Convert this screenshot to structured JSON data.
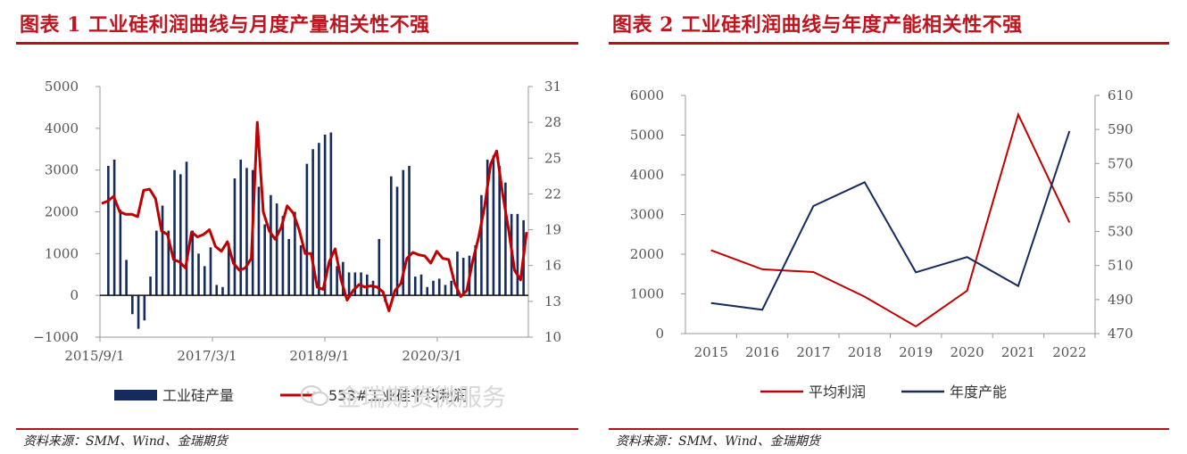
{
  "figures": [
    {
      "title": "图表 1  工业硅利润曲线与月度产量相关性不强",
      "source": "资料来源：SMM、Wind、金瑞期货"
    },
    {
      "title": "图表 2  工业硅利润曲线与年度产能相关性不强",
      "source": "资料来源：SMM、Wind、金瑞期货"
    }
  ],
  "watermark": {
    "text": "金瑞期货微服务",
    "icon": "wechat-icon"
  },
  "colors": {
    "accent": "#c0151f",
    "navy": "#152a5e",
    "red_line": "#c00000"
  },
  "chart_data": [
    {
      "type": "bar",
      "title": "",
      "x_tick_labels": [
        "2015/9/1",
        "2017/3/1",
        "2018/9/1",
        "2020/3/1"
      ],
      "y_left": {
        "ylim": [
          -1000,
          5000
        ],
        "ticks": [
          -1000,
          0,
          1000,
          2000,
          3000,
          4000,
          5000
        ],
        "tick_labels": [
          "−1000",
          "0",
          "1000",
          "2000",
          "3000",
          "4000",
          "5000"
        ]
      },
      "y_right": {
        "ylim": [
          10,
          31
        ],
        "ticks": [
          10,
          13,
          16,
          19,
          22,
          25,
          28,
          31
        ],
        "tick_labels": [
          "10",
          "13",
          "16",
          "19",
          "22",
          "25",
          "28",
          "31"
        ]
      },
      "legend": [
        "工业硅产量",
        "553#工业硅平均利润"
      ],
      "legend_position": "bottom",
      "grid": false,
      "series": [
        {
          "name": "工业硅产量",
          "type": "bar",
          "axis": "left",
          "values": [
            3100,
            3250,
            2050,
            850,
            -450,
            -800,
            -600,
            450,
            1550,
            2150,
            1550,
            3000,
            2900,
            3200,
            1550,
            1000,
            700,
            1150,
            250,
            200,
            1250,
            2800,
            3250,
            3050,
            3000,
            2600,
            1700,
            2400,
            2200,
            1900,
            1350,
            2000,
            1200,
            3150,
            3500,
            3650,
            3850,
            3900,
            700,
            800,
            550,
            550,
            550,
            500,
            350,
            1350,
            -150,
            2850,
            2600,
            3000,
            3100,
            450,
            500,
            200,
            350,
            400,
            250,
            350,
            1050,
            900,
            950,
            1200,
            2400,
            3250,
            3350,
            3100,
            2700,
            1950,
            1950,
            1800
          ]
        },
        {
          "name": "553#工业硅平均利润",
          "type": "line",
          "axis": "right",
          "values": [
            21.2,
            21.4,
            21.8,
            20.5,
            20.3,
            20.3,
            20.1,
            22.3,
            22.4,
            21.6,
            18.9,
            18.6,
            16.5,
            16.3,
            15.8,
            18.8,
            18.4,
            18.6,
            19.0,
            17.6,
            17.2,
            18.0,
            16.2,
            15.6,
            15.8,
            16.6,
            28.0,
            20.5,
            18.9,
            18.2,
            19.2,
            21.0,
            20.4,
            19.0,
            17.0,
            17.0,
            14.2,
            14.0,
            16.3,
            17.4,
            14.8,
            13.1,
            13.9,
            14.4,
            14.2,
            14.3,
            14.2,
            13.8,
            12.2,
            13.9,
            14.5,
            16.6,
            17.1,
            16.9,
            16.8,
            16.2,
            17.2,
            16.6,
            16.5,
            14.5,
            13.4,
            13.9,
            16.4,
            18.4,
            21.0,
            24.5,
            25.6,
            22.0,
            19.0,
            15.6,
            14.8,
            18.8
          ]
        }
      ]
    },
    {
      "type": "line",
      "title": "",
      "x": [
        "2015",
        "2016",
        "2017",
        "2018",
        "2019",
        "2020",
        "2021",
        "2022"
      ],
      "y_left": {
        "ylim": [
          0,
          6000
        ],
        "ticks": [
          0,
          1000,
          2000,
          3000,
          4000,
          5000,
          6000
        ]
      },
      "y_right": {
        "ylim": [
          470,
          610
        ],
        "ticks": [
          470,
          490,
          510,
          530,
          550,
          570,
          590,
          610
        ]
      },
      "legend": [
        "平均利润",
        "年度产能"
      ],
      "legend_position": "bottom",
      "grid": false,
      "series": [
        {
          "name": "平均利润",
          "axis": "left",
          "values": [
            2100,
            1620,
            1550,
            930,
            180,
            1080,
            5520,
            2800
          ]
        },
        {
          "name": "年度产能",
          "axis": "right",
          "values": [
            488,
            484,
            545,
            559,
            506,
            515,
            498,
            589
          ]
        }
      ]
    }
  ]
}
